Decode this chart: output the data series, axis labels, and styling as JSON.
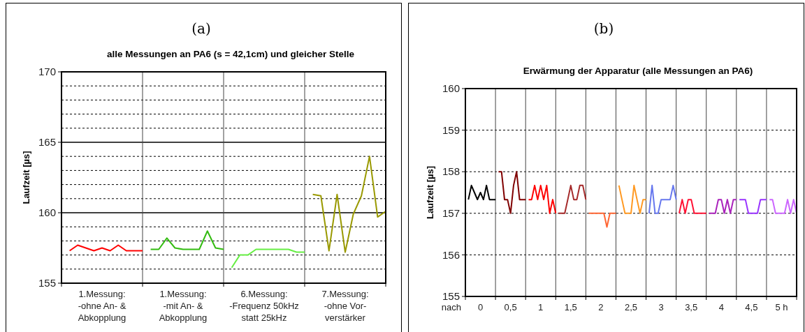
{
  "chart_data": [
    {
      "type": "line",
      "title": "alle Messungen an PA6 (s = 42,1cm) und gleicher Stelle",
      "annotations": [
        "(a)"
      ],
      "ylabel": "Laufzeit [µs]",
      "categories": [
        null,
        null,
        null,
        null,
        "1.Messung:\n-ohne An- &\nAbkopplung",
        null,
        null,
        null,
        null,
        null,
        null,
        null,
        null,
        null,
        "1.Messung:\n-mit An- &\nAbkopplung",
        null,
        null,
        null,
        null,
        null,
        null,
        null,
        null,
        null,
        "6.Messung:\n-Frequenz 50kHz\nstatt 25kHz",
        null,
        null,
        null,
        null,
        null,
        null,
        null,
        null,
        null,
        "7.Messung:\n-ohne Vor-\nverstärker",
        null,
        null,
        null,
        null,
        null
      ],
      "ylim": [
        155,
        170
      ],
      "yticks": [
        155,
        {
          "value": 156,
          "label": null
        },
        {
          "value": 157,
          "label": null
        },
        {
          "value": 158,
          "label": null
        },
        {
          "value": 159,
          "label": null
        },
        160,
        {
          "value": 161,
          "label": null
        },
        {
          "value": 162,
          "label": null
        },
        {
          "value": 163,
          "label": null
        },
        {
          "value": 164,
          "label": null
        },
        165,
        {
          "value": 166,
          "label": null
        },
        {
          "value": 167,
          "label": null
        },
        {
          "value": 168,
          "label": null
        },
        {
          "value": 169,
          "label": null
        },
        170
      ],
      "grid": true,
      "series": [
        {
          "color": "#ff0000",
          "values": [
            157.3,
            157.7,
            157.5,
            157.3,
            157.5,
            157.3,
            157.7,
            157.3,
            157.3,
            157.3,
            null,
            null,
            null,
            null,
            null,
            null,
            null,
            null,
            null,
            null,
            null,
            null,
            null,
            null,
            null,
            null,
            null,
            null,
            null,
            null,
            null,
            null,
            null,
            null,
            null,
            null,
            null,
            null,
            null,
            null
          ]
        },
        {
          "color": "#33bb11",
          "values": [
            null,
            null,
            null,
            null,
            null,
            null,
            null,
            null,
            null,
            null,
            157.4,
            157.4,
            158.2,
            157.5,
            157.4,
            157.4,
            157.4,
            158.7,
            157.5,
            157.4,
            null,
            null,
            null,
            null,
            null,
            null,
            null,
            null,
            null,
            null,
            null,
            null,
            null,
            null,
            null,
            null,
            null,
            null,
            null,
            null
          ]
        },
        {
          "color": "#66ee44",
          "values": [
            null,
            null,
            null,
            null,
            null,
            null,
            null,
            null,
            null,
            null,
            null,
            null,
            null,
            null,
            null,
            null,
            null,
            null,
            null,
            null,
            156.1,
            157.0,
            157.0,
            157.4,
            157.4,
            157.4,
            157.4,
            157.4,
            157.2,
            157.2,
            null,
            null,
            null,
            null,
            null,
            null,
            null,
            null,
            null,
            null
          ]
        },
        {
          "color": "#999900",
          "values": [
            null,
            null,
            null,
            null,
            null,
            null,
            null,
            null,
            null,
            null,
            null,
            null,
            null,
            null,
            null,
            null,
            null,
            null,
            null,
            null,
            null,
            null,
            null,
            null,
            null,
            null,
            null,
            null,
            null,
            null,
            161.3,
            161.2,
            157.3,
            161.3,
            157.2,
            159.9,
            161.2,
            164.0,
            159.7,
            160.1
          ]
        }
      ]
    },
    {
      "type": "line",
      "title": "Erwärmung der Apparatur (alle Messungen an PA6)",
      "annotations": [
        "(b)"
      ],
      "ylabel": "Laufzeit [µs]",
      "xlabel": "nach",
      "categories": [
        null,
        null,
        null,
        null,
        "0",
        null,
        null,
        null,
        null,
        null,
        null,
        null,
        null,
        null,
        "0,5",
        null,
        null,
        null,
        null,
        null,
        null,
        null,
        null,
        null,
        "1",
        null,
        null,
        null,
        null,
        null,
        null,
        null,
        null,
        null,
        "1,5",
        null,
        null,
        null,
        null,
        null,
        null,
        null,
        null,
        null,
        "2",
        null,
        null,
        null,
        null,
        null,
        null,
        null,
        null,
        null,
        "2,5",
        null,
        null,
        null,
        null,
        null,
        null,
        null,
        null,
        null,
        "3",
        null,
        null,
        null,
        null,
        null,
        null,
        null,
        null,
        null,
        "3,5",
        null,
        null,
        null,
        null,
        null,
        null,
        null,
        null,
        null,
        "4",
        null,
        null,
        null,
        null,
        null,
        null,
        null,
        null,
        null,
        "4,5",
        null,
        null,
        null,
        null,
        null,
        null,
        null,
        null,
        null,
        "5 h",
        null,
        null,
        null,
        null,
        null
      ],
      "ylim": [
        155,
        160
      ],
      "yticks": [
        155,
        156,
        157,
        158,
        159,
        160
      ],
      "grid": true,
      "series": [
        {
          "color": "#000000",
          "values": [
            157.33,
            157.67,
            157.5,
            157.33,
            157.5,
            157.33,
            157.67,
            157.33,
            157.33,
            157.33,
            null,
            null,
            null,
            null,
            null,
            null,
            null,
            null,
            null,
            null,
            null,
            null,
            null,
            null,
            null,
            null,
            null,
            null,
            null,
            null,
            null,
            null,
            null,
            null,
            null,
            null,
            null,
            null,
            null,
            null,
            null,
            null,
            null,
            null,
            null,
            null,
            null,
            null,
            null,
            null,
            null,
            null,
            null,
            null,
            null,
            null,
            null,
            null,
            null,
            null,
            null,
            null,
            null,
            null,
            null,
            null,
            null,
            null,
            null,
            null,
            null,
            null,
            null,
            null,
            null,
            null,
            null,
            null,
            null,
            null,
            null,
            null,
            null,
            null,
            null,
            null,
            null,
            null,
            null,
            null,
            null,
            null,
            null,
            null,
            null,
            null,
            null,
            null,
            null,
            null,
            null,
            null,
            null,
            null,
            null,
            null,
            null,
            null,
            null,
            null
          ]
        },
        {
          "color": "#800000",
          "values": [
            null,
            null,
            null,
            null,
            null,
            null,
            null,
            null,
            null,
            null,
            158,
            158,
            157.33,
            157.33,
            157,
            157.67,
            158,
            157.33,
            157.33,
            157.33,
            null,
            null,
            null,
            null,
            null,
            null,
            null,
            null,
            null,
            null,
            null,
            null,
            null,
            null,
            null,
            null,
            null,
            null,
            null,
            null,
            null,
            null,
            null,
            null,
            null,
            null,
            null,
            null,
            null,
            null,
            null,
            null,
            null,
            null,
            null,
            null,
            null,
            null,
            null,
            null,
            null,
            null,
            null,
            null,
            null,
            null,
            null,
            null,
            null,
            null,
            null,
            null,
            null,
            null,
            null,
            null,
            null,
            null,
            null,
            null,
            null,
            null,
            null,
            null,
            null,
            null,
            null,
            null,
            null,
            null,
            null,
            null,
            null,
            null,
            null,
            null,
            null,
            null,
            null,
            null,
            null,
            null,
            null,
            null,
            null,
            null,
            null,
            null,
            null,
            null
          ]
        },
        {
          "color": "#ff0000",
          "values": [
            null,
            null,
            null,
            null,
            null,
            null,
            null,
            null,
            null,
            null,
            null,
            null,
            null,
            null,
            null,
            null,
            null,
            null,
            null,
            null,
            157.33,
            157.33,
            157.67,
            157.33,
            157.67,
            157.33,
            157.67,
            157,
            157.33,
            157,
            null,
            null,
            null,
            null,
            null,
            null,
            null,
            null,
            null,
            null,
            null,
            null,
            null,
            null,
            null,
            null,
            null,
            null,
            null,
            null,
            null,
            null,
            null,
            null,
            null,
            null,
            null,
            null,
            null,
            null,
            null,
            null,
            null,
            null,
            null,
            null,
            null,
            null,
            null,
            null,
            null,
            null,
            null,
            null,
            null,
            null,
            null,
            null,
            null,
            null,
            null,
            null,
            null,
            null,
            null,
            null,
            null,
            null,
            null,
            null,
            null,
            null,
            null,
            null,
            null,
            null,
            null,
            null,
            null,
            null,
            null,
            null,
            null,
            null,
            null,
            null,
            null,
            null,
            null,
            null
          ]
        },
        {
          "color": "#a52a2a",
          "values": [
            null,
            null,
            null,
            null,
            null,
            null,
            null,
            null,
            null,
            null,
            null,
            null,
            null,
            null,
            null,
            null,
            null,
            null,
            null,
            null,
            null,
            null,
            null,
            null,
            null,
            null,
            null,
            null,
            null,
            null,
            157,
            157,
            157,
            157.33,
            157.67,
            157.33,
            157.33,
            157.67,
            157.67,
            157.33,
            null,
            null,
            null,
            null,
            null,
            null,
            null,
            null,
            null,
            null,
            null,
            null,
            null,
            null,
            null,
            null,
            null,
            null,
            null,
            null,
            null,
            null,
            null,
            null,
            null,
            null,
            null,
            null,
            null,
            null,
            null,
            null,
            null,
            null,
            null,
            null,
            null,
            null,
            null,
            null,
            null,
            null,
            null,
            null,
            null,
            null,
            null,
            null,
            null,
            null,
            null,
            null,
            null,
            null,
            null,
            null,
            null,
            null,
            null,
            null,
            null,
            null,
            null,
            null,
            null,
            null,
            null,
            null,
            null,
            null
          ]
        },
        {
          "color": "#ff6633",
          "values": [
            null,
            null,
            null,
            null,
            null,
            null,
            null,
            null,
            null,
            null,
            null,
            null,
            null,
            null,
            null,
            null,
            null,
            null,
            null,
            null,
            null,
            null,
            null,
            null,
            null,
            null,
            null,
            null,
            null,
            null,
            null,
            null,
            null,
            null,
            null,
            null,
            null,
            null,
            null,
            null,
            157,
            157,
            157,
            157,
            157,
            157,
            156.67,
            157,
            157,
            157,
            null,
            null,
            null,
            null,
            null,
            null,
            null,
            null,
            null,
            null,
            null,
            null,
            null,
            null,
            null,
            null,
            null,
            null,
            null,
            null,
            null,
            null,
            null,
            null,
            null,
            null,
            null,
            null,
            null,
            null,
            null,
            null,
            null,
            null,
            null,
            null,
            null,
            null,
            null,
            null,
            null,
            null,
            null,
            null,
            null,
            null,
            null,
            null,
            null,
            null,
            null,
            null,
            null,
            null,
            null,
            null,
            null,
            null,
            null,
            null
          ]
        },
        {
          "color": "#ff9922",
          "values": [
            null,
            null,
            null,
            null,
            null,
            null,
            null,
            null,
            null,
            null,
            null,
            null,
            null,
            null,
            null,
            null,
            null,
            null,
            null,
            null,
            null,
            null,
            null,
            null,
            null,
            null,
            null,
            null,
            null,
            null,
            null,
            null,
            null,
            null,
            null,
            null,
            null,
            null,
            null,
            null,
            null,
            null,
            null,
            null,
            null,
            null,
            null,
            null,
            null,
            null,
            157.67,
            157.33,
            157,
            157,
            157,
            157.67,
            157.33,
            157,
            157.33,
            157.33,
            null,
            null,
            null,
            null,
            null,
            null,
            null,
            null,
            null,
            null,
            null,
            null,
            null,
            null,
            null,
            null,
            null,
            null,
            null,
            null,
            null,
            null,
            null,
            null,
            null,
            null,
            null,
            null,
            null,
            null,
            null,
            null,
            null,
            null,
            null,
            null,
            null,
            null,
            null,
            null,
            null,
            null,
            null,
            null,
            null,
            null,
            null,
            null,
            null,
            null
          ]
        },
        {
          "color": "#6677ee",
          "values": [
            null,
            null,
            null,
            null,
            null,
            null,
            null,
            null,
            null,
            null,
            null,
            null,
            null,
            null,
            null,
            null,
            null,
            null,
            null,
            null,
            null,
            null,
            null,
            null,
            null,
            null,
            null,
            null,
            null,
            null,
            null,
            null,
            null,
            null,
            null,
            null,
            null,
            null,
            null,
            null,
            null,
            null,
            null,
            null,
            null,
            null,
            null,
            null,
            null,
            null,
            null,
            null,
            null,
            null,
            null,
            null,
            null,
            null,
            null,
            null,
            157,
            157.67,
            157,
            157,
            157.33,
            157.33,
            157.33,
            157.33,
            157.67,
            157.33,
            null,
            null,
            null,
            null,
            null,
            null,
            null,
            null,
            null,
            null,
            null,
            null,
            null,
            null,
            null,
            null,
            null,
            null,
            null,
            null,
            null,
            null,
            null,
            null,
            null,
            null,
            null,
            null,
            null,
            null,
            null,
            null,
            null,
            null,
            null,
            null,
            null,
            null,
            null,
            null
          ]
        },
        {
          "color": "#ff1133",
          "values": [
            null,
            null,
            null,
            null,
            null,
            null,
            null,
            null,
            null,
            null,
            null,
            null,
            null,
            null,
            null,
            null,
            null,
            null,
            null,
            null,
            null,
            null,
            null,
            null,
            null,
            null,
            null,
            null,
            null,
            null,
            null,
            null,
            null,
            null,
            null,
            null,
            null,
            null,
            null,
            null,
            null,
            null,
            null,
            null,
            null,
            null,
            null,
            null,
            null,
            null,
            null,
            null,
            null,
            null,
            null,
            null,
            null,
            null,
            null,
            null,
            null,
            null,
            null,
            null,
            null,
            null,
            null,
            null,
            null,
            null,
            157,
            157.33,
            157,
            157.33,
            157.33,
            157,
            157,
            157,
            157,
            157,
            null,
            null,
            null,
            null,
            null,
            null,
            null,
            null,
            null,
            null,
            null,
            null,
            null,
            null,
            null,
            null,
            null,
            null,
            null,
            null,
            null,
            null,
            null,
            null,
            null,
            null,
            null,
            null,
            null,
            null
          ]
        },
        {
          "color": "#aa22bb",
          "values": [
            null,
            null,
            null,
            null,
            null,
            null,
            null,
            null,
            null,
            null,
            null,
            null,
            null,
            null,
            null,
            null,
            null,
            null,
            null,
            null,
            null,
            null,
            null,
            null,
            null,
            null,
            null,
            null,
            null,
            null,
            null,
            null,
            null,
            null,
            null,
            null,
            null,
            null,
            null,
            null,
            null,
            null,
            null,
            null,
            null,
            null,
            null,
            null,
            null,
            null,
            null,
            null,
            null,
            null,
            null,
            null,
            null,
            null,
            null,
            null,
            null,
            null,
            null,
            null,
            null,
            null,
            null,
            null,
            null,
            null,
            null,
            null,
            null,
            null,
            null,
            null,
            null,
            null,
            null,
            null,
            157,
            157,
            157,
            157.33,
            157.33,
            157,
            157.33,
            157,
            157.33,
            157.33,
            null,
            null,
            null,
            null,
            null,
            null,
            null,
            null,
            null,
            null,
            null,
            null,
            null,
            null,
            null,
            null,
            null,
            null,
            null,
            null
          ]
        },
        {
          "color": "#9933ff",
          "values": [
            null,
            null,
            null,
            null,
            null,
            null,
            null,
            null,
            null,
            null,
            null,
            null,
            null,
            null,
            null,
            null,
            null,
            null,
            null,
            null,
            null,
            null,
            null,
            null,
            null,
            null,
            null,
            null,
            null,
            null,
            null,
            null,
            null,
            null,
            null,
            null,
            null,
            null,
            null,
            null,
            null,
            null,
            null,
            null,
            null,
            null,
            null,
            null,
            null,
            null,
            null,
            null,
            null,
            null,
            null,
            null,
            null,
            null,
            null,
            null,
            null,
            null,
            null,
            null,
            null,
            null,
            null,
            null,
            null,
            null,
            null,
            null,
            null,
            null,
            null,
            null,
            null,
            null,
            null,
            null,
            null,
            null,
            null,
            null,
            null,
            null,
            null,
            null,
            null,
            null,
            157.33,
            157.33,
            157.33,
            157,
            157,
            157,
            157,
            157.33,
            157.33,
            157.33,
            null,
            null,
            null,
            null,
            null,
            null,
            null,
            null,
            null,
            null
          ]
        },
        {
          "color": "#cc66ff",
          "values": [
            null,
            null,
            null,
            null,
            null,
            null,
            null,
            null,
            null,
            null,
            null,
            null,
            null,
            null,
            null,
            null,
            null,
            null,
            null,
            null,
            null,
            null,
            null,
            null,
            null,
            null,
            null,
            null,
            null,
            null,
            null,
            null,
            null,
            null,
            null,
            null,
            null,
            null,
            null,
            null,
            null,
            null,
            null,
            null,
            null,
            null,
            null,
            null,
            null,
            null,
            null,
            null,
            null,
            null,
            null,
            null,
            null,
            null,
            null,
            null,
            null,
            null,
            null,
            null,
            null,
            null,
            null,
            null,
            null,
            null,
            null,
            null,
            null,
            null,
            null,
            null,
            null,
            null,
            null,
            null,
            null,
            null,
            null,
            null,
            null,
            null,
            null,
            null,
            null,
            null,
            null,
            null,
            null,
            null,
            null,
            null,
            null,
            null,
            null,
            null,
            157.33,
            157.33,
            157,
            157,
            157,
            157,
            157.33,
            157,
            157.33,
            157
          ]
        }
      ]
    }
  ]
}
